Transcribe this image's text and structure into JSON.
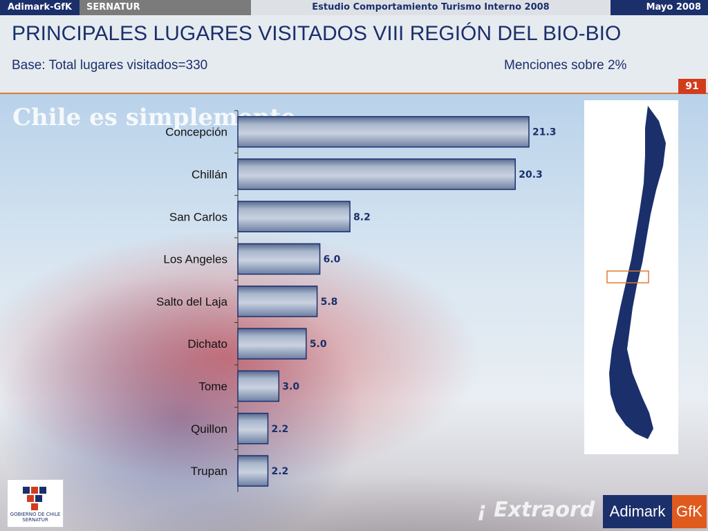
{
  "topbar": {
    "brand": "Adimark-GfK",
    "client": "SERNATUR",
    "study": "Estudio Comportamiento Turismo Interno 2008",
    "date": "Mayo 2008"
  },
  "slide": {
    "title": "PRINCIPALES LUGARES VISITADOS VIII REGIÓN DEL BIO-BIO",
    "subtitle": "Base: Total lugares visitados=330",
    "note": "Menciones sobre 2%",
    "page_number": "91"
  },
  "watermarks": {
    "top": "Chile es simplemente",
    "bottom": "¡ Extraord"
  },
  "logos": {
    "gov_text": "GOBIERNO DE CHILE",
    "gov_sub": "SERNATUR",
    "brand_a": "Adimark",
    "brand_b": "GfK"
  },
  "colors": {
    "navy": "#1b2f6b",
    "accent": "#e07a30",
    "page_badge": "#d23c1c"
  },
  "chart_data": {
    "type": "bar",
    "orientation": "horizontal",
    "categories": [
      "Concepción",
      "Chillán",
      "San Carlos",
      "Los Angeles",
      "Salto del Laja",
      "Dichato",
      "Tome",
      "Quillon",
      "Trupan"
    ],
    "values": [
      21.3,
      20.3,
      8.2,
      6.0,
      5.8,
      5.0,
      3.0,
      2.2,
      2.2
    ],
    "value_labels": [
      "21.3",
      "20.3",
      "8.2",
      "6.0",
      "5.8",
      "5.0",
      "3.0",
      "2.2",
      "2.2"
    ],
    "xlim": [
      0,
      24
    ],
    "grid": false,
    "legend": "none"
  }
}
